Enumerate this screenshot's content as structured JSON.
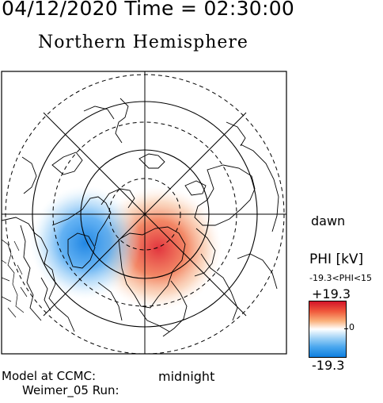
{
  "header": {
    "datetime": "04/12/2020 Time = 02:30:00",
    "hemisphere": "Northern Hemisphere"
  },
  "map": {
    "labels": {
      "dawn": "dawn",
      "midnight": "midnight"
    },
    "colors": {
      "positive_potential": "#e8303a",
      "negative_potential": "#1e8ae6",
      "background": "#ffffff",
      "lines": "#000000"
    }
  },
  "colorbar": {
    "title": "PHI [kV]",
    "range_text": "-19.3<PHI<15",
    "max_label": "+19.3",
    "zero_label": "0",
    "min_label": "-19.3"
  },
  "footer": {
    "model_label": "Model at CCMC:",
    "run_label": "Weimer_05 Run:"
  }
}
